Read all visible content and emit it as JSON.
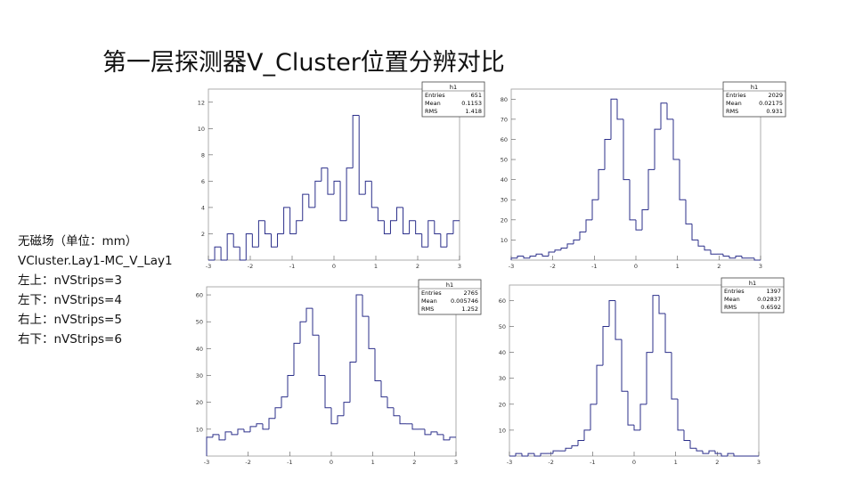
{
  "title": "第一层探测器V_Cluster位置分辨对比",
  "notes": [
    "无磁场（单位：mm）",
    "VCluster.Lay1-MC_V_Lay1",
    "左上：nVStrips=3",
    "左下：nVStrips=4",
    "右上：nVStrips=5",
    "右下：nVStrips=6"
  ],
  "chart_data": [
    {
      "type": "histogram",
      "title": "h1",
      "color": "#2b2f8a",
      "stats": [
        {
          "name": "Entries",
          "value": 651
        },
        {
          "name": "Mean",
          "value": 0.1153
        },
        {
          "name": "RMS",
          "value": 1.418
        }
      ],
      "bins": [
        -3,
        -2.85,
        -2.7,
        -2.55,
        -2.4,
        -2.25,
        -2.1,
        -1.95,
        -1.8,
        -1.65,
        -1.5,
        -1.35,
        -1.2,
        -1.05,
        -0.9,
        -0.75,
        -0.6,
        -0.45,
        -0.3,
        -0.15,
        0,
        0.15,
        0.3,
        0.45,
        0.6,
        0.75,
        0.9,
        1.05,
        1.2,
        1.35,
        1.5,
        1.65,
        1.8,
        1.95,
        2.1,
        2.25,
        2.4,
        2.55,
        2.7,
        2.85,
        3
      ],
      "values": [
        0,
        1,
        0,
        2,
        1,
        0,
        2,
        1,
        3,
        2,
        1,
        2,
        4,
        2,
        3,
        5,
        4,
        6,
        7,
        5,
        6,
        3,
        7,
        11,
        5,
        6,
        4,
        3,
        2,
        3,
        4,
        2,
        3,
        2,
        1,
        3,
        2,
        1,
        2,
        3
      ],
      "xlim": [
        -3,
        3
      ],
      "xticks": [
        -3,
        -2,
        -1,
        0,
        1,
        2,
        3
      ],
      "ylim": [
        0,
        13
      ],
      "yticks": [
        2,
        4,
        6,
        8,
        10,
        12
      ]
    },
    {
      "type": "histogram",
      "title": "h1",
      "color": "#2b2f8a",
      "stats": [
        {
          "name": "Entries",
          "value": 2029
        },
        {
          "name": "Mean",
          "value": 0.02175
        },
        {
          "name": "RMS",
          "value": 0.931
        }
      ],
      "bins": [
        -3,
        -2.85,
        -2.7,
        -2.55,
        -2.4,
        -2.25,
        -2.1,
        -1.95,
        -1.8,
        -1.65,
        -1.5,
        -1.35,
        -1.2,
        -1.05,
        -0.9,
        -0.75,
        -0.6,
        -0.45,
        -0.3,
        -0.15,
        0,
        0.15,
        0.3,
        0.45,
        0.6,
        0.75,
        0.9,
        1.05,
        1.2,
        1.35,
        1.5,
        1.65,
        1.8,
        1.95,
        2.1,
        2.25,
        2.4,
        2.55,
        2.7,
        2.85,
        3
      ],
      "values": [
        1,
        2,
        1,
        2,
        3,
        2,
        4,
        5,
        6,
        8,
        10,
        14,
        20,
        30,
        45,
        60,
        80,
        70,
        40,
        20,
        15,
        25,
        45,
        65,
        78,
        70,
        50,
        30,
        18,
        10,
        7,
        5,
        3,
        3,
        2,
        1,
        2,
        1,
        1,
        0
      ],
      "xlim": [
        -3,
        3
      ],
      "xticks": [
        -3,
        -2,
        -1,
        0,
        1,
        2,
        3
      ],
      "ylim": [
        0,
        85
      ],
      "yticks": [
        10,
        20,
        30,
        40,
        50,
        60,
        70,
        80
      ]
    },
    {
      "type": "histogram",
      "title": "h1",
      "color": "#2b2f8a",
      "stats": [
        {
          "name": "Entries",
          "value": 2765
        },
        {
          "name": "Mean",
          "value": 0.005746
        },
        {
          "name": "RMS",
          "value": 1.252
        }
      ],
      "bins": [
        -3,
        -2.85,
        -2.7,
        -2.55,
        -2.4,
        -2.25,
        -2.1,
        -1.95,
        -1.8,
        -1.65,
        -1.5,
        -1.35,
        -1.2,
        -1.05,
        -0.9,
        -0.75,
        -0.6,
        -0.45,
        -0.3,
        -0.15,
        0,
        0.15,
        0.3,
        0.45,
        0.6,
        0.75,
        0.9,
        1.05,
        1.2,
        1.35,
        1.5,
        1.65,
        1.8,
        1.95,
        2.1,
        2.25,
        2.4,
        2.55,
        2.7,
        2.85,
        3
      ],
      "values": [
        7,
        8,
        6,
        9,
        8,
        10,
        9,
        11,
        12,
        10,
        14,
        18,
        22,
        30,
        42,
        50,
        55,
        45,
        30,
        18,
        12,
        15,
        20,
        35,
        60,
        52,
        40,
        28,
        22,
        18,
        15,
        12,
        12,
        10,
        10,
        8,
        9,
        8,
        6,
        7
      ],
      "xlim": [
        -3,
        3
      ],
      "xticks": [
        -3,
        -2,
        -1,
        0,
        1,
        2,
        3
      ],
      "ylim": [
        0,
        63
      ],
      "yticks": [
        10,
        20,
        30,
        40,
        50,
        60
      ]
    },
    {
      "type": "histogram",
      "title": "h1",
      "color": "#2b2f8a",
      "stats": [
        {
          "name": "Entries",
          "value": 1397
        },
        {
          "name": "Mean",
          "value": 0.02837
        },
        {
          "name": "RMS",
          "value": 0.6592
        }
      ],
      "bins": [
        -3,
        -2.85,
        -2.7,
        -2.55,
        -2.4,
        -2.25,
        -2.1,
        -1.95,
        -1.8,
        -1.65,
        -1.5,
        -1.35,
        -1.2,
        -1.05,
        -0.9,
        -0.75,
        -0.6,
        -0.45,
        -0.3,
        -0.15,
        0,
        0.15,
        0.3,
        0.45,
        0.6,
        0.75,
        0.9,
        1.05,
        1.2,
        1.35,
        1.5,
        1.65,
        1.8,
        1.95,
        2.1,
        2.25,
        2.4,
        2.55,
        2.7,
        2.85,
        3
      ],
      "values": [
        0,
        1,
        0,
        1,
        0,
        1,
        1,
        2,
        2,
        3,
        4,
        6,
        10,
        20,
        35,
        50,
        60,
        45,
        25,
        12,
        10,
        20,
        40,
        62,
        55,
        40,
        22,
        10,
        6,
        3,
        2,
        1,
        2,
        1,
        0,
        1,
        0,
        0,
        0,
        0
      ],
      "xlim": [
        -3,
        3
      ],
      "xticks": [
        -3,
        -2,
        -1,
        0,
        1,
        2,
        3
      ],
      "ylim": [
        0,
        66
      ],
      "yticks": [
        10,
        20,
        30,
        40,
        50,
        60
      ]
    }
  ]
}
